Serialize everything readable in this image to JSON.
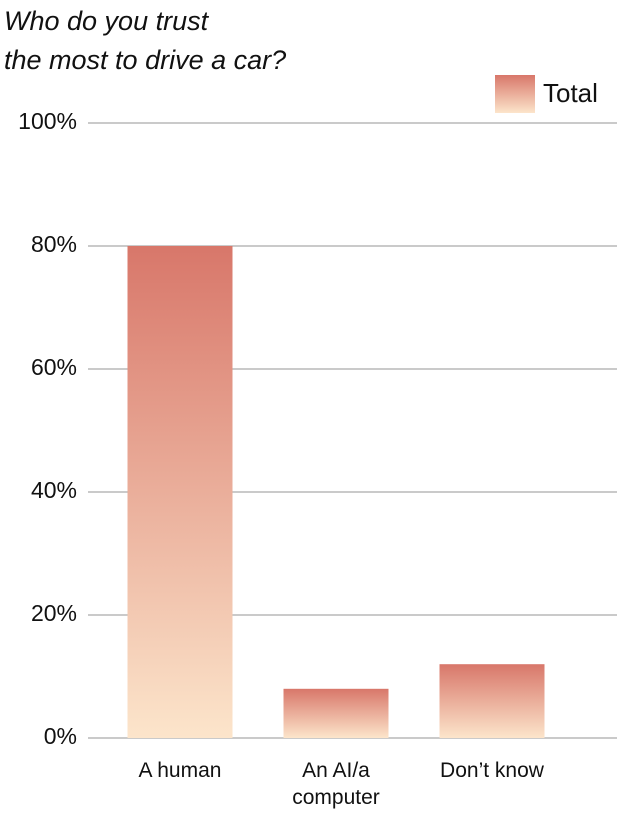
{
  "chart_data": {
    "type": "bar",
    "title": "Who do you trust\nthe most to drive a car?",
    "categories": [
      "A human",
      "An AI/a computer",
      "Don’t know"
    ],
    "series": [
      {
        "name": "Total",
        "gradient": [
          "#d8776a",
          "#fce5cb"
        ],
        "values": [
          80,
          8,
          12
        ]
      }
    ],
    "ylim": [
      0,
      100
    ],
    "yticks": [
      {
        "value": 0,
        "label": "0%"
      },
      {
        "value": 20,
        "label": "20%"
      },
      {
        "value": 40,
        "label": "40%"
      },
      {
        "value": 60,
        "label": "60%"
      },
      {
        "value": 80,
        "label": "80%"
      },
      {
        "value": 100,
        "label": "100%"
      }
    ],
    "grid": true,
    "legend": "top-right"
  }
}
